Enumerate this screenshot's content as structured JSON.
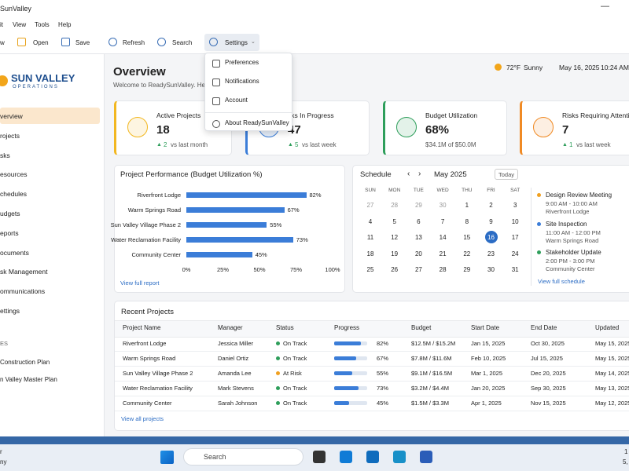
{
  "window": {
    "title": "SunValley"
  },
  "menu": [
    "it",
    "View",
    "Tools",
    "Help"
  ],
  "toolbar": [
    "w",
    "Open",
    "Save",
    "Refresh",
    "Search",
    "Settings"
  ],
  "settings_menu": [
    "Preferences",
    "Notifications",
    "Account",
    "About ReadySunValley"
  ],
  "sidebar": {
    "logo_title": "SUN VALLEY",
    "logo_subtitle": "OPERATIONS",
    "items": [
      "verview",
      "rojects",
      "sks",
      "esources",
      "chedules",
      "udgets",
      "eports",
      "ocuments",
      "sk Management",
      "ommunications",
      "ettings"
    ],
    "section": "ES",
    "recent": [
      "Construction Plan",
      "n Valley Master Plan"
    ]
  },
  "header": {
    "title": "Overview",
    "subtitle": "Welcome to ReadySunValley. He",
    "temperature": "72°F",
    "weather": "Sunny",
    "date": "May 16, 2025",
    "time": "10:24 AM"
  },
  "kpis": [
    {
      "label": "Active Projects",
      "value": "18",
      "change": "2",
      "note": "vs last month",
      "color": "#f2b720"
    },
    {
      "label": "sks In Progress",
      "value": "47",
      "change": "5",
      "note": "vs last week",
      "color": "#3b7dd8"
    },
    {
      "label": "Budget Utilization",
      "value": "68%",
      "note": "$34.1M of $50.0M",
      "color": "#2e9e5b"
    },
    {
      "label": "Risks Requiring Attention",
      "value": "7",
      "change": "1",
      "note": "vs last week",
      "color": "#f08a24"
    }
  ],
  "performance_chart": {
    "type": "bar",
    "title": "Project Performance (Budget Utilization %)",
    "categories": [
      "Riverfront Lodge",
      "Warm Springs Road",
      "Sun Valley Village Phase 2",
      "Water Reclamation Facility",
      "Community Center"
    ],
    "values": [
      82,
      67,
      55,
      73,
      45
    ],
    "value_labels": [
      "82%",
      "67%",
      "55%",
      "73%",
      "45%"
    ],
    "color": "#3b7dd8",
    "xlim": [
      0,
      100
    ],
    "xticks": [
      {
        "value": 0,
        "label": "0%"
      },
      {
        "value": 25,
        "label": "25%"
      },
      {
        "value": 50,
        "label": "50%"
      },
      {
        "value": 75,
        "label": "75%"
      },
      {
        "value": 100,
        "label": "100%"
      }
    ],
    "link": "View full report"
  },
  "schedule": {
    "title": "Schedule",
    "month": "May 2025",
    "today_button": "Today",
    "weekdays": [
      "SUN",
      "MON",
      "TUE",
      "WED",
      "THU",
      "FRI",
      "SAT"
    ],
    "weeks": [
      [
        "27",
        "28",
        "29",
        "30",
        "1",
        "2",
        "3"
      ],
      [
        "4",
        "5",
        "6",
        "7",
        "8",
        "9",
        "10"
      ],
      [
        "11",
        "12",
        "13",
        "14",
        "15",
        "16",
        "17"
      ],
      [
        "18",
        "19",
        "20",
        "21",
        "22",
        "23",
        "24"
      ],
      [
        "25",
        "26",
        "27",
        "28",
        "29",
        "30",
        "31"
      ]
    ],
    "selected_day": "16",
    "events": [
      {
        "title": "Design Review Meeting",
        "time": "9:00 AM - 10:00 AM",
        "location": "Riverfront Lodge",
        "color": "#f0a020"
      },
      {
        "title": "Site Inspection",
        "time": "11:00 AM - 12:00 PM",
        "location": "Warm Springs Road",
        "color": "#3b7dd8"
      },
      {
        "title": "Stakeholder Update",
        "time": "2:00 PM - 3:00 PM",
        "location": "Community Center",
        "color": "#2e9e5b"
      }
    ],
    "link": "View full schedule"
  },
  "table": {
    "title": "Recent Projects",
    "columns": [
      "Project Name",
      "Manager",
      "Status",
      "Progress",
      "Budget",
      "Start Date",
      "End Date",
      "Updated"
    ],
    "status_colors": {
      "On Track": "#2e9e5b",
      "At Risk": "#f0a020"
    },
    "progress_color": "#3b7dd8",
    "rows": [
      {
        "project": "Riverfront Lodge",
        "manager": "Jessica Miller",
        "status": "On Track",
        "progress": 82,
        "progress_label": "82%",
        "budget": "$12.5M / $15.2M",
        "start": "Jan 15, 2025",
        "end": "Oct 30, 2025",
        "updated": "May 15, 2025"
      },
      {
        "project": "Warm Springs Road",
        "manager": "Daniel Ortiz",
        "status": "On Track",
        "progress": 67,
        "progress_label": "67%",
        "budget": "$7.8M / $11.6M",
        "start": "Feb 10, 2025",
        "end": "Jul 15, 2025",
        "updated": "May 15, 2025"
      },
      {
        "project": "Sun Valley Village Phase 2",
        "manager": "Amanda Lee",
        "status": "At Risk",
        "progress": 55,
        "progress_label": "55%",
        "budget": "$9.1M / $16.5M",
        "start": "Mar 1, 2025",
        "end": "Dec 20, 2025",
        "updated": "May 14, 2025"
      },
      {
        "project": "Water Reclamation Facility",
        "manager": "Mark Stevens",
        "status": "On Track",
        "progress": 73,
        "progress_label": "73%",
        "budget": "$3.2M / $4.4M",
        "start": "Jan 20, 2025",
        "end": "Sep 30, 2025",
        "updated": "May 13, 2025"
      },
      {
        "project": "Community Center",
        "manager": "Sarah Johnson",
        "status": "On Track",
        "progress": 45,
        "progress_label": "45%",
        "budget": "$1.5M / $3.3M",
        "start": "Apr 1, 2025",
        "end": "Nov 15, 2025",
        "updated": "May 12, 2025"
      }
    ],
    "link": "View all projects"
  },
  "taskbar": {
    "left": [
      "r",
      "ny"
    ],
    "search": "Search",
    "right": [
      "1",
      "5,"
    ]
  }
}
